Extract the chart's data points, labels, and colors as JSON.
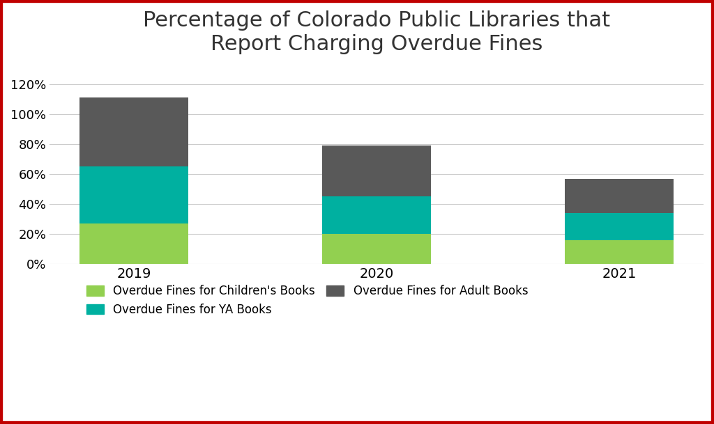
{
  "categories": [
    "2019",
    "2020",
    "2021"
  ],
  "children_values": [
    27,
    20,
    16
  ],
  "ya_values": [
    38,
    25,
    18
  ],
  "adult_values": [
    46,
    34,
    23
  ],
  "children_color": "#92d050",
  "ya_color": "#00b0a0",
  "adult_color": "#595959",
  "title": "Percentage of Colorado Public Libraries that\nReport Charging Overdue Fines",
  "title_fontsize": 22,
  "ylabel_ticks": [
    "0%",
    "20%",
    "40%",
    "60%",
    "80%",
    "100%",
    "120%"
  ],
  "ytick_values": [
    0,
    20,
    40,
    60,
    80,
    100,
    120
  ],
  "ylim": [
    0,
    130
  ],
  "legend_labels": [
    "Overdue Fines for Children's Books",
    "Overdue Fines for YA Books",
    "Overdue Fines for Adult Books"
  ],
  "bar_width": 0.45,
  "background_color": "#ffffff",
  "border_color": "#c00000"
}
